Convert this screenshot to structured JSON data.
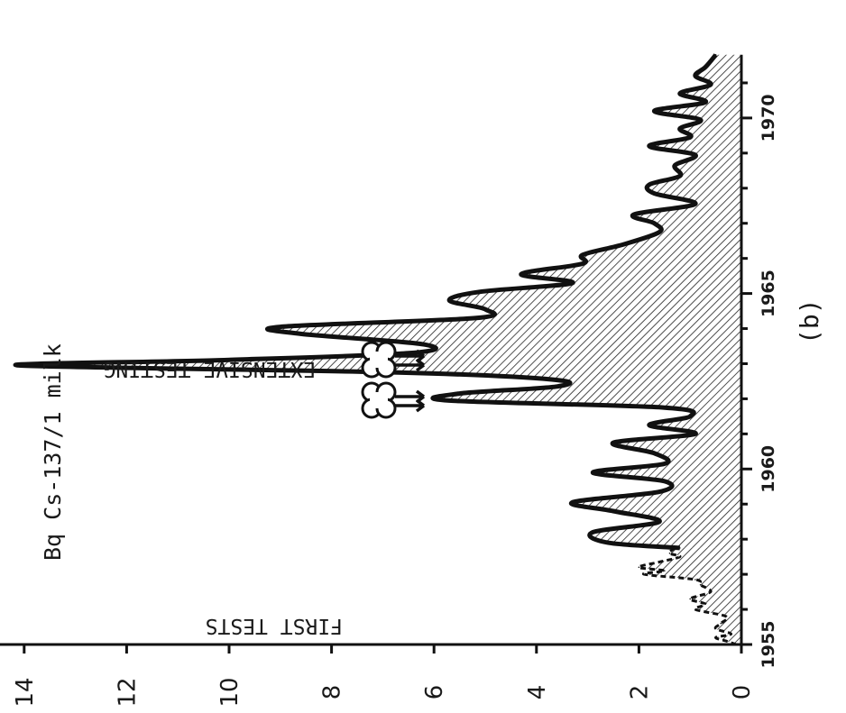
{
  "chart_data": {
    "type": "area",
    "ylabel": "Bq Cs-137/1 milk",
    "xlabel": "",
    "caption": "(b)",
    "xlim": [
      1955,
      1971.8
    ],
    "ylim": [
      0,
      14.6
    ],
    "x_ticks": [
      1955,
      1960,
      1965,
      1970
    ],
    "y_ticks": [
      0,
      2,
      4,
      6,
      8,
      10,
      12,
      14
    ],
    "annotations": [
      {
        "text": "FIRST TESTS",
        "x": 1955.0
      },
      {
        "text": "EXTENSIVE TESTING",
        "x": 1961.6
      }
    ],
    "series": [
      {
        "style": "dashed",
        "x": [
          1955.0,
          1955.1,
          1955.2,
          1955.3,
          1955.45,
          1955.6,
          1955.8,
          1956.0,
          1956.15,
          1956.3,
          1956.5,
          1956.7,
          1956.85,
          1957.0,
          1957.1,
          1957.2,
          1957.35,
          1957.5,
          1957.6,
          1957.75
        ],
        "y": [
          0.1,
          0.3,
          0.5,
          0.2,
          0.5,
          0.4,
          0.3,
          0.9,
          0.7,
          1.0,
          0.6,
          0.8,
          0.9,
          1.9,
          1.5,
          2.0,
          1.6,
          1.2,
          1.4,
          1.3
        ]
      },
      {
        "style": "solid",
        "x": [
          1957.75,
          1957.9,
          1958.2,
          1958.5,
          1958.8,
          1959.05,
          1959.35,
          1959.65,
          1959.9,
          1960.15,
          1960.45,
          1960.75,
          1961.0,
          1961.25,
          1961.5,
          1961.75,
          1961.95,
          1962.15,
          1962.35,
          1962.55,
          1962.75,
          1962.95,
          1963.1,
          1963.3,
          1963.55,
          1963.85,
          1964.05,
          1964.3,
          1964.55,
          1964.8,
          1965.05,
          1965.3,
          1965.55,
          1965.85,
          1966.1,
          1966.4,
          1966.75,
          1967.0,
          1967.25,
          1967.55,
          1967.85,
          1968.1,
          1968.35,
          1968.65,
          1968.95,
          1969.2,
          1969.45,
          1969.7,
          1969.95,
          1970.2,
          1970.45,
          1970.7,
          1970.95,
          1971.2,
          1971.45,
          1971.8
        ],
        "y": [
          1.2,
          2.6,
          2.9,
          1.6,
          2.5,
          3.3,
          1.6,
          1.5,
          2.9,
          1.5,
          1.7,
          2.5,
          0.9,
          1.8,
          1.0,
          1.5,
          5.7,
          5.5,
          3.6,
          3.7,
          6.7,
          14.1,
          10.2,
          6.5,
          6.2,
          8.6,
          9.0,
          5.2,
          5.0,
          5.7,
          5.1,
          3.3,
          4.3,
          3.1,
          3.1,
          2.3,
          1.6,
          1.7,
          2.1,
          0.9,
          1.7,
          1.8,
          1.2,
          1.3,
          0.9,
          1.8,
          1.0,
          1.2,
          0.8,
          1.7,
          0.7,
          1.2,
          0.6,
          0.9,
          0.7,
          0.5
        ]
      }
    ]
  }
}
